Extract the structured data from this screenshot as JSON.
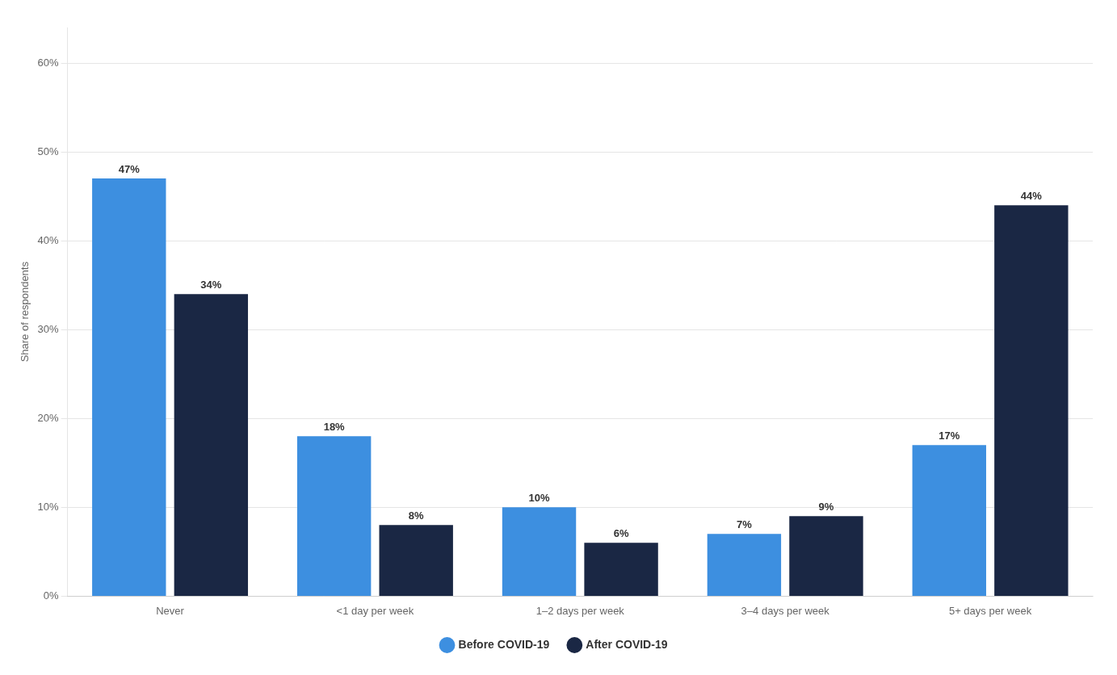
{
  "chart_data": {
    "type": "bar",
    "categories": [
      "Never",
      "<1 day per week",
      "1–2 days per week",
      "3–4 days per week",
      "5+ days per week"
    ],
    "series": [
      {
        "name": "Before COVID-19",
        "color": "#3d8fe0",
        "values": [
          47,
          18,
          10,
          7,
          17
        ],
        "value_labels": [
          "47%",
          "18%",
          "10%",
          "7%",
          "17%"
        ]
      },
      {
        "name": "After COVID-19",
        "color": "#1a2744",
        "values": [
          34,
          8,
          6,
          9,
          44
        ],
        "value_labels": [
          "34%",
          "8%",
          "6%",
          "9%",
          "44%"
        ]
      }
    ],
    "ylabel": "Share of respondents",
    "ylim": [
      0,
      64
    ],
    "yticks": [
      {
        "value": 0,
        "label": "0%"
      },
      {
        "value": 10,
        "label": "10%"
      },
      {
        "value": 20,
        "label": "20%"
      },
      {
        "value": 30,
        "label": "30%"
      },
      {
        "value": 40,
        "label": "40%"
      },
      {
        "value": 50,
        "label": "50%"
      },
      {
        "value": 60,
        "label": "60%"
      }
    ],
    "grid": true,
    "legend": "bottom",
    "data_labels": true
  }
}
